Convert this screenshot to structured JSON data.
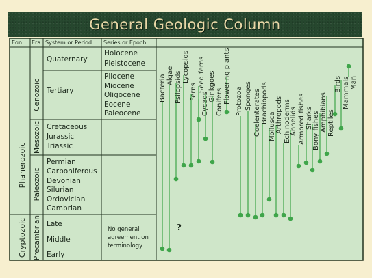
{
  "title": "General Geologic Column",
  "headers": {
    "eon": "Eon",
    "era": "Era",
    "period": "System or Period",
    "epoch": "Series or Epoch"
  },
  "eons": [
    "Phanerozoic",
    "Cryptozoic"
  ],
  "eras": [
    "Cenozoic",
    "Mesozoic",
    "Paleozoic",
    "Precambrian"
  ],
  "periods": {
    "cenozoic": [
      "Quaternary",
      "Tertiary"
    ],
    "mesozoic": [
      "Cretaceous",
      "Jurassic",
      "Triassic"
    ],
    "paleozoic": [
      "Permian",
      "Carboniferous",
      "Devonian",
      "Silurian",
      "Ordovician",
      "Cambrian"
    ],
    "precambrian": [
      "Late",
      "Middle",
      "Early"
    ]
  },
  "epochs": {
    "quaternary": [
      "Holocene",
      "Pleistocene"
    ],
    "tertiary": [
      "Pliocene",
      "Miocene",
      "Oligocene",
      "Eocene",
      "Paleocene"
    ],
    "precambrian_note": [
      "No general",
      "agreement on",
      "terminology"
    ]
  },
  "question_mark": "?",
  "organisms": [
    {
      "name": "Bacteria"
    },
    {
      "name": "Algae"
    },
    {
      "name": "Psilopsids"
    },
    {
      "name": "Lycopsids"
    },
    {
      "name": "Ferns"
    },
    {
      "name": "Seed ferns"
    },
    {
      "name": "Cycads"
    },
    {
      "name": "Ginkgoes"
    },
    {
      "name": "Conifers"
    },
    {
      "name": "Flowering plants"
    },
    {
      "name": "Protozoa"
    },
    {
      "name": "Sponges"
    },
    {
      "name": "Coelenterates"
    },
    {
      "name": "Brachiopods"
    },
    {
      "name": "Mollusca"
    },
    {
      "name": "Arthropods"
    },
    {
      "name": "Echinoderms"
    },
    {
      "name": "Annelids"
    },
    {
      "name": "Armored fishes"
    },
    {
      "name": "Sharks"
    },
    {
      "name": "Bony fishes"
    },
    {
      "name": "Amphibians"
    },
    {
      "name": "Reptiles"
    },
    {
      "name": "Birds"
    },
    {
      "name": "Mammals"
    },
    {
      "name": "Man"
    }
  ],
  "colors": {
    "panel": "#cfe6c9",
    "line": "#3fa54a",
    "dot": "#3fa54a",
    "banner": "#26472e",
    "title": "#e8d7a6",
    "background": "#f7efcf"
  }
}
